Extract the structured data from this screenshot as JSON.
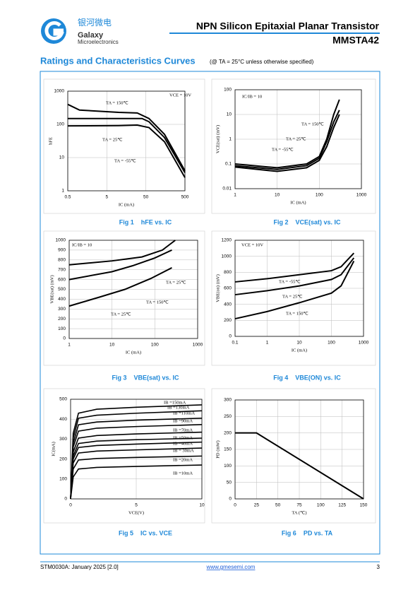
{
  "header": {
    "logo_cn": "银河微电",
    "logo_en1": "Galaxy",
    "logo_en2": "Microelectronics",
    "title": "NPN Silicon Epitaxial Planar Transistor",
    "part": "MMSTA42"
  },
  "section": {
    "title": "Ratings and Characteristics Curves",
    "note": "(@ TA = 25°C unless otherwise specified)"
  },
  "chart_data": [
    {
      "type": "line",
      "caption": "Fig 1    hFE vs. IC",
      "xlabel": "IC (mA)",
      "ylabel": "hFE",
      "annotation": "VCE = 10V",
      "xscale": "log",
      "yscale": "log",
      "xlim": [
        0.5,
        500
      ],
      "ylim": [
        1,
        1000
      ],
      "xticks": [
        0.5,
        5,
        50,
        500
      ],
      "yticks": [
        1,
        10,
        100,
        1000
      ],
      "grid": true,
      "series": [
        {
          "name": "TA = 150℃",
          "color": "#000000",
          "x": [
            0.5,
            1,
            10,
            30,
            60,
            150,
            500
          ],
          "values": [
            400,
            270,
            230,
            220,
            150,
            50,
            4
          ]
        },
        {
          "name": "TA = 25℃",
          "color": "#000000",
          "x": [
            0.5,
            10,
            40,
            60,
            150,
            500
          ],
          "values": [
            150,
            150,
            150,
            120,
            40,
            3.5
          ]
        },
        {
          "name": "TA = -55℃",
          "color": "#000000",
          "x": [
            0.5,
            10,
            30,
            60,
            150,
            500
          ],
          "values": [
            90,
            92,
            95,
            80,
            30,
            2.5
          ]
        }
      ]
    },
    {
      "type": "line",
      "caption": "Fig 2    VCE(sat) vs. IC",
      "xlabel": "IC (mA)",
      "ylabel": "VCE(sat) (mV)",
      "annotation": "IC/IB = 10",
      "xscale": "log",
      "yscale": "log",
      "xlim": [
        1,
        1000
      ],
      "ylim": [
        0.01,
        100
      ],
      "xticks": [
        1,
        10,
        100,
        1000
      ],
      "yticks": [
        0.01,
        0.1,
        1,
        10,
        100
      ],
      "grid": true,
      "series": [
        {
          "name": "TA = 150℃",
          "color": "#000000",
          "x": [
            1,
            10,
            50,
            100,
            150,
            220,
            300
          ],
          "values": [
            0.1,
            0.07,
            0.1,
            0.2,
            1,
            10,
            40
          ]
        },
        {
          "name": "TA = 25℃",
          "color": "#000000",
          "x": [
            1,
            10,
            50,
            100,
            150,
            220,
            300
          ],
          "values": [
            0.085,
            0.06,
            0.085,
            0.17,
            0.8,
            5,
            15
          ]
        },
        {
          "name": "TA = -55℃",
          "color": "#000000",
          "x": [
            1,
            10,
            50,
            100,
            150,
            220,
            300
          ],
          "values": [
            0.075,
            0.05,
            0.07,
            0.14,
            0.5,
            3,
            10
          ]
        }
      ]
    },
    {
      "type": "line",
      "caption": "Fig 3    VBE(sat) vs. IC",
      "xlabel": "IC (mA)",
      "ylabel": "VBE(sat) (mV)",
      "annotation": "IC/IB = 10",
      "xscale": "log",
      "xlim": [
        1,
        1000
      ],
      "ylim": [
        0,
        1000
      ],
      "xticks": [
        1,
        10,
        100,
        1000
      ],
      "yticks": [
        0,
        100,
        200,
        300,
        400,
        500,
        600,
        700,
        800,
        900,
        1000
      ],
      "grid": true,
      "series": [
        {
          "name": "TA = 25℃",
          "color": "#000000",
          "x": [
            1,
            10,
            50,
            150,
            300
          ],
          "values": [
            750,
            790,
            830,
            900,
            1000
          ]
        },
        {
          "name": "TA = 150℃",
          "color": "#000000",
          "x": [
            1,
            10,
            30,
            100,
            250
          ],
          "values": [
            600,
            680,
            740,
            820,
            900
          ]
        },
        {
          "name": "TA = 25℃",
          "color": "#000000",
          "x": [
            1,
            5,
            20,
            80,
            250
          ],
          "values": [
            330,
            420,
            500,
            610,
            720
          ]
        }
      ]
    },
    {
      "type": "line",
      "caption": "Fig 4    VBE(ON) vs. IC",
      "xlabel": "IC (mA)",
      "ylabel": "VBE(on) (mV)",
      "annotation": "VCE = 10V",
      "xscale": "log",
      "xlim": [
        0.1,
        1000
      ],
      "ylim": [
        0,
        1200
      ],
      "xticks": [
        0.1,
        1,
        10,
        100,
        1000
      ],
      "yticks": [
        0,
        200,
        400,
        600,
        800,
        1000,
        1200
      ],
      "grid": true,
      "series": [
        {
          "name": "TA = -55℃",
          "color": "#000000",
          "x": [
            0.1,
            1,
            10,
            100,
            200,
            500
          ],
          "values": [
            680,
            720,
            770,
            820,
            870,
            1040
          ]
        },
        {
          "name": "TA = 25℃",
          "color": "#000000",
          "x": [
            0.1,
            1,
            10,
            100,
            200,
            500
          ],
          "values": [
            520,
            570,
            630,
            710,
            770,
            980
          ]
        },
        {
          "name": "TA = 150℃",
          "color": "#000000",
          "x": [
            0.1,
            1,
            10,
            100,
            200,
            500
          ],
          "values": [
            220,
            310,
            420,
            540,
            630,
            940
          ]
        }
      ]
    },
    {
      "type": "line",
      "caption": "Fig 5    IC vs. VCE",
      "xlabel": "VCE(V)",
      "ylabel": "IC(mA)",
      "xlim": [
        0,
        10
      ],
      "ylim": [
        0,
        500
      ],
      "xticks": [
        0,
        5,
        10
      ],
      "yticks": [
        0,
        100,
        200,
        300,
        400,
        500
      ],
      "grid": true,
      "series": [
        {
          "name": "IB =10mA",
          "color": "#000000",
          "x": [
            0,
            0.2,
            0.6,
            2,
            5,
            10
          ],
          "values": [
            0,
            110,
            150,
            158,
            163,
            170
          ]
        },
        {
          "name": "IB =20mA",
          "color": "#000000",
          "x": [
            0,
            0.2,
            0.6,
            2,
            5,
            10
          ],
          "values": [
            0,
            150,
            195,
            203,
            208,
            215
          ]
        },
        {
          "name": "IB = 30mA",
          "color": "#000000",
          "x": [
            0,
            0.2,
            0.6,
            2,
            5,
            10
          ],
          "values": [
            0,
            180,
            230,
            240,
            246,
            255
          ]
        },
        {
          "name": "IB =40mA",
          "color": "#000000",
          "x": [
            0,
            0.2,
            0.6,
            2,
            5,
            10
          ],
          "values": [
            0,
            200,
            258,
            268,
            275,
            285
          ]
        },
        {
          "name": "IB =50mA",
          "color": "#000000",
          "x": [
            0,
            0.2,
            0.6,
            2,
            5,
            10
          ],
          "values": [
            0,
            215,
            278,
            290,
            297,
            305
          ]
        },
        {
          "name": "IB =70mA",
          "color": "#000000",
          "x": [
            0,
            0.2,
            0.6,
            2,
            5,
            10
          ],
          "values": [
            0,
            235,
            305,
            318,
            326,
            335
          ]
        },
        {
          "name": "IB =90mA",
          "color": "#000000",
          "x": [
            0,
            0.2,
            0.6,
            2,
            5,
            10
          ],
          "values": [
            0,
            260,
            340,
            355,
            363,
            373
          ]
        },
        {
          "name": "IB =110mA",
          "color": "#000000",
          "x": [
            0,
            0.2,
            0.6,
            2,
            5,
            10
          ],
          "values": [
            0,
            280,
            372,
            386,
            395,
            405
          ]
        },
        {
          "name": "IB =130mA",
          "color": "#000000",
          "x": [
            0,
            0.2,
            0.6,
            2,
            5,
            10
          ],
          "values": [
            0,
            305,
            405,
            420,
            430,
            442
          ]
        },
        {
          "name": "IB =150mA",
          "color": "#000000",
          "x": [
            0,
            0.2,
            0.6,
            2,
            5,
            10
          ],
          "values": [
            0,
            330,
            430,
            450,
            460,
            472
          ]
        }
      ]
    },
    {
      "type": "line",
      "caption": "Fig 6    PD vs. TA",
      "xlabel": "TA (℃)",
      "ylabel": "PD (mW)",
      "xlim": [
        0,
        150
      ],
      "ylim": [
        0,
        300
      ],
      "xticks": [
        0,
        25,
        50,
        75,
        100,
        125,
        150
      ],
      "yticks": [
        0,
        50,
        100,
        150,
        200,
        250,
        300
      ],
      "grid": true,
      "series": [
        {
          "name": "PD",
          "color": "#000000",
          "x": [
            0,
            25,
            150
          ],
          "values": [
            200,
            200,
            0
          ]
        }
      ]
    }
  ],
  "footer": {
    "doc": "STM0030A: January 2025 [2.0]",
    "url": "www.gmesemi.com",
    "page": "3"
  }
}
